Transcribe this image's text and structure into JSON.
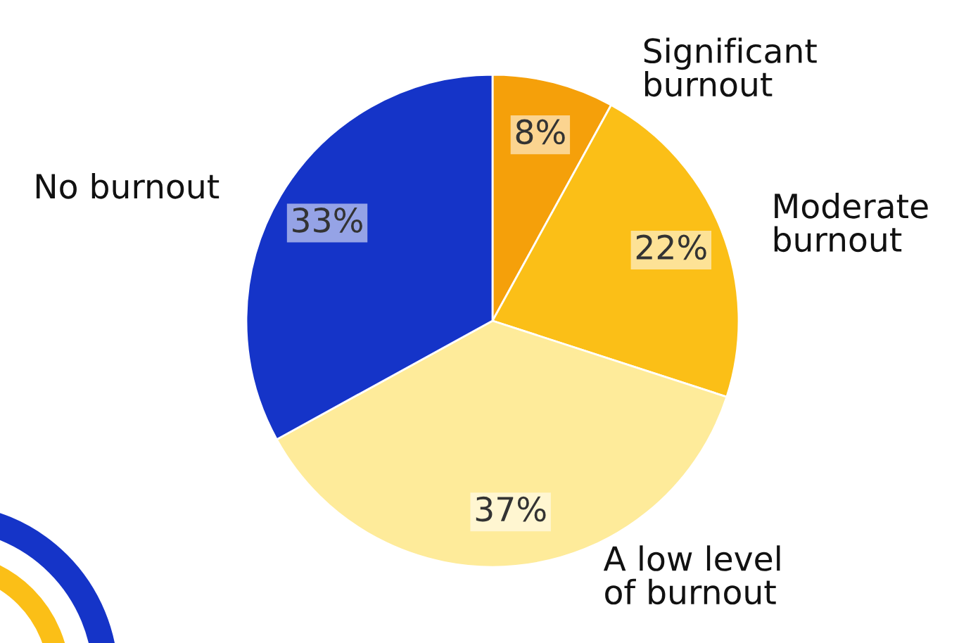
{
  "chart_data": {
    "type": "pie",
    "categories": [
      "Significant burnout",
      "Moderate burnout",
      "A low level of burnout",
      "No burnout"
    ],
    "values": [
      8,
      22,
      37,
      33
    ],
    "colors": [
      "#f5a00a",
      "#fbbf17",
      "#feeb9a",
      "#1534c8"
    ],
    "value_labels": [
      "8%",
      "22%",
      "37%",
      "33%"
    ],
    "legend": false
  }
}
